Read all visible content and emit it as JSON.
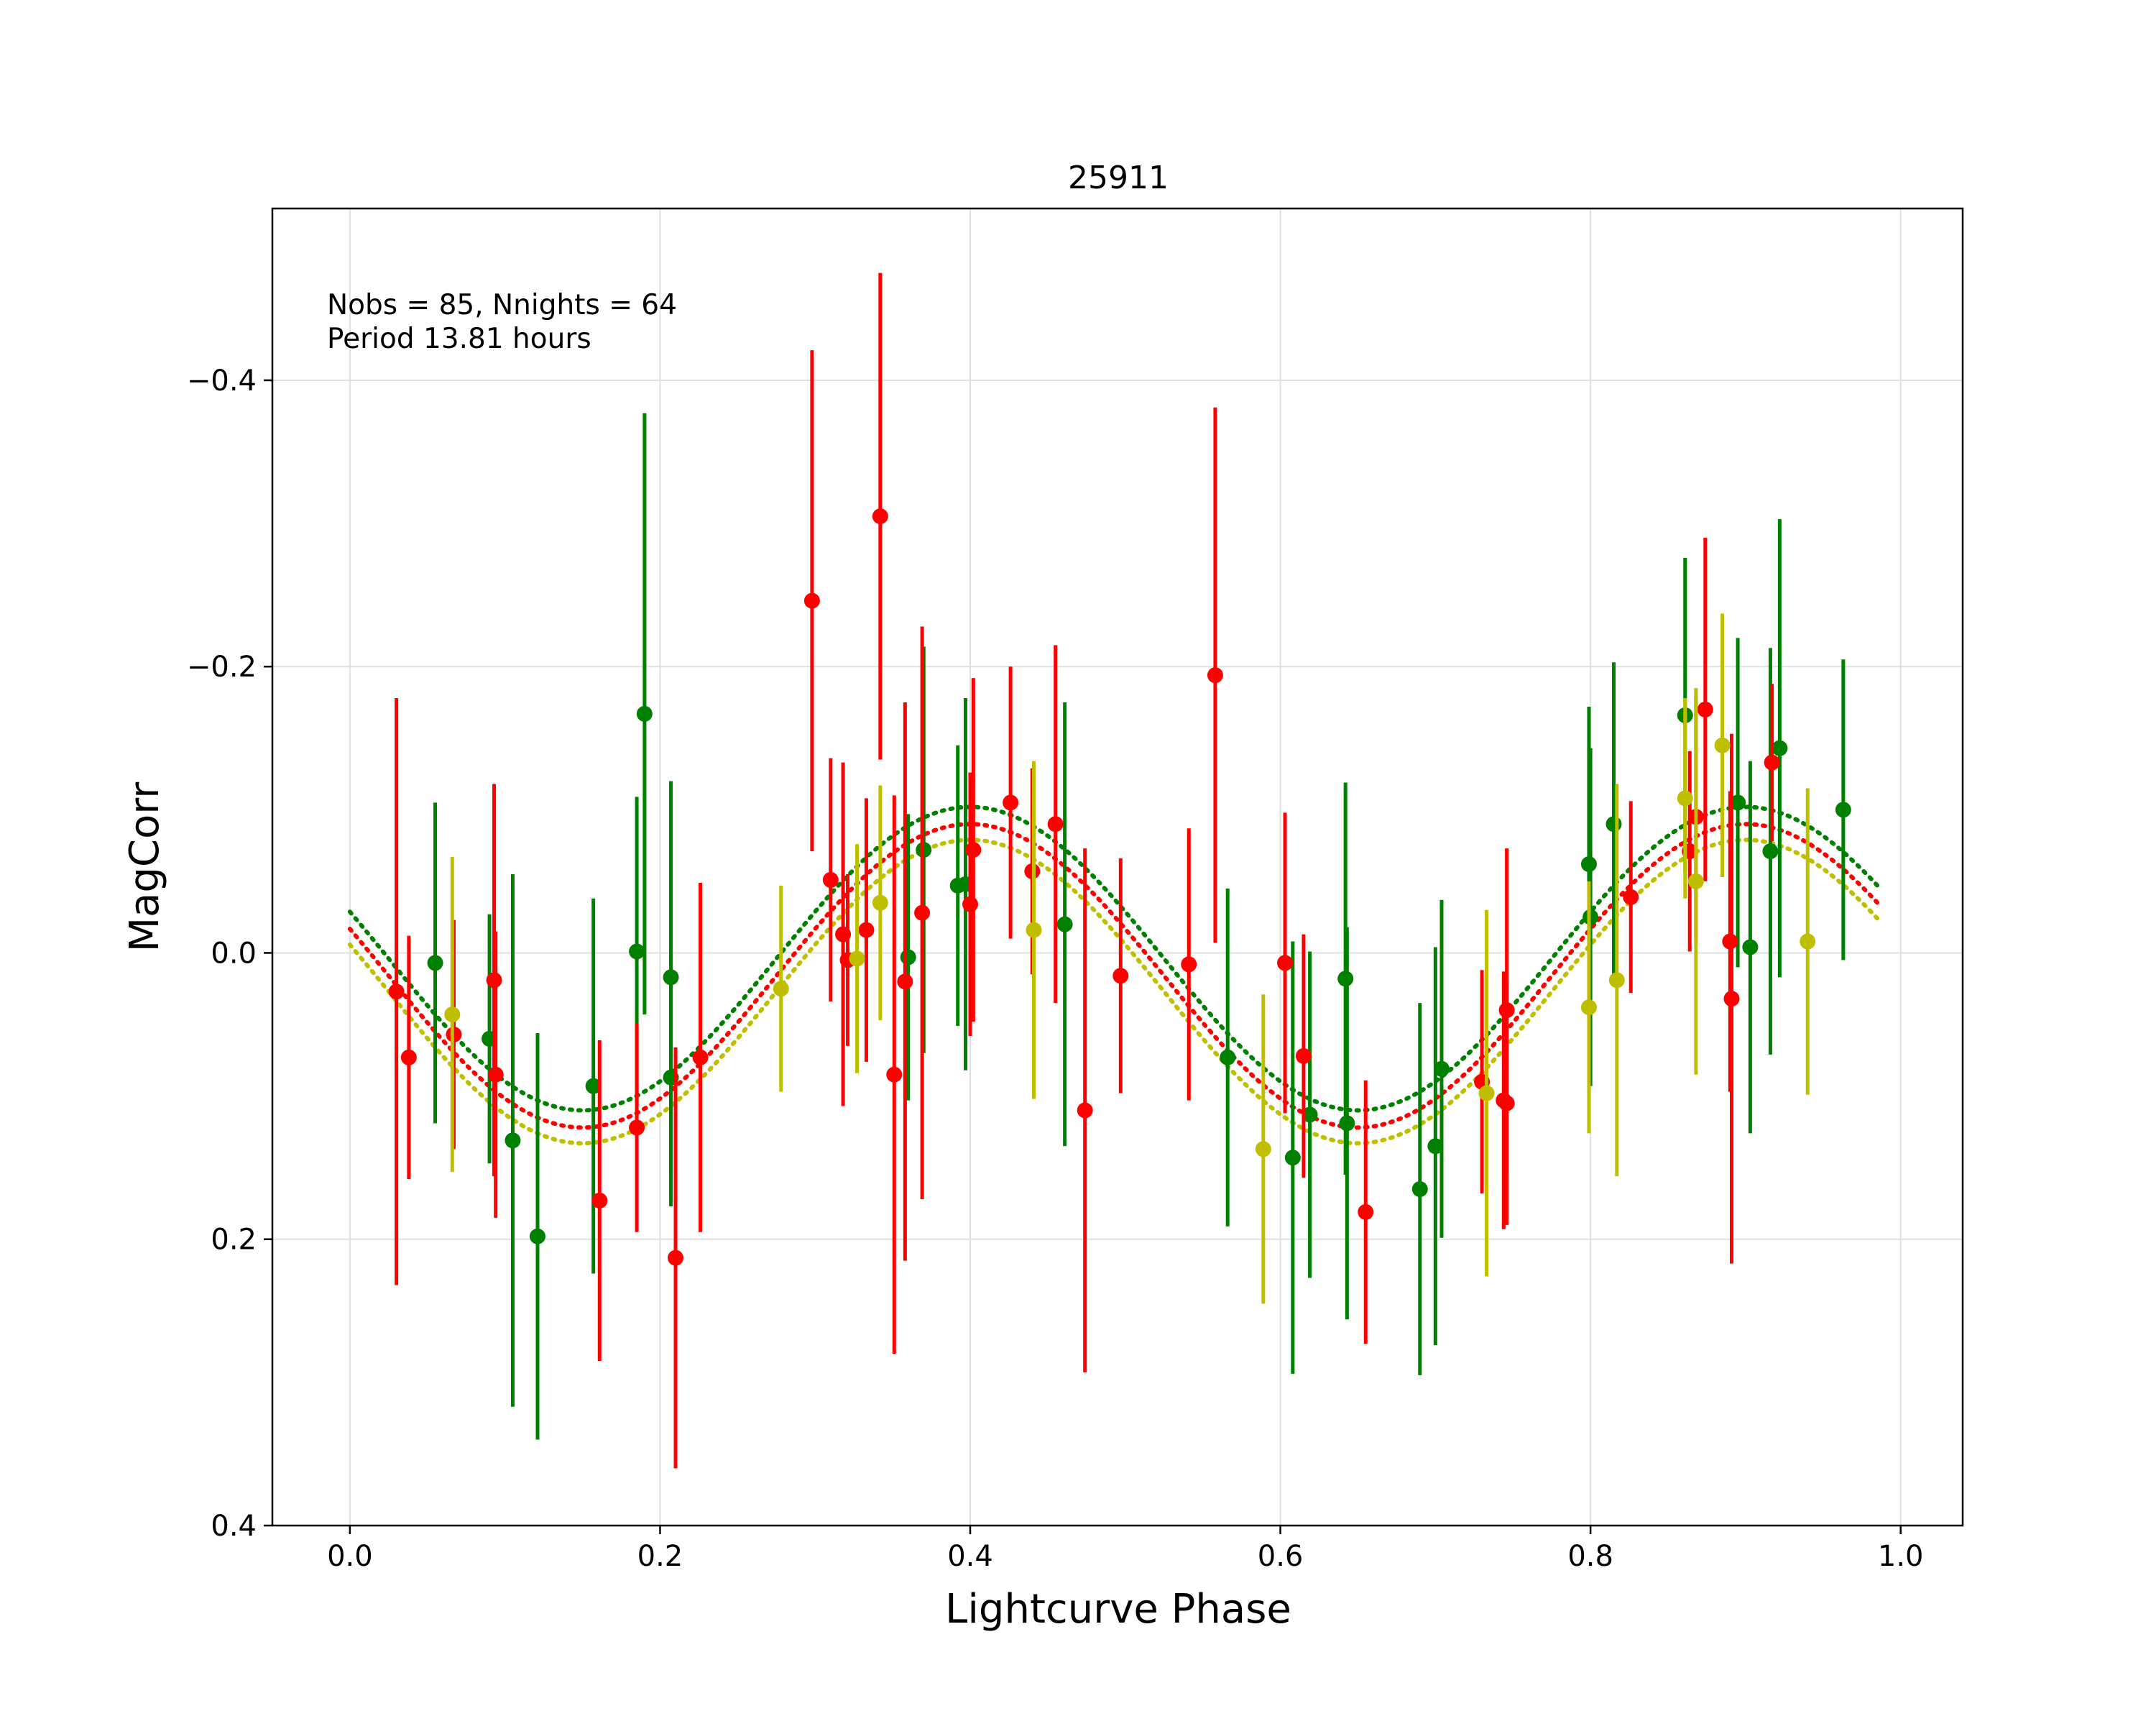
{
  "chart_data": {
    "type": "scatter",
    "title": "25911",
    "xlabel": "Lightcurve Phase",
    "ylabel": "MagCorr",
    "xlim": [
      -0.05,
      1.04
    ],
    "ylim": [
      0.4,
      -0.52
    ],
    "y_inverted": true,
    "grid": true,
    "xticks": [
      0.0,
      0.2,
      0.4,
      0.6,
      0.8,
      1.0
    ],
    "xtick_labels": [
      "0.0",
      "0.2",
      "0.4",
      "0.6",
      "0.8",
      "1.0"
    ],
    "yticks": [
      0.4,
      0.2,
      0.0,
      -0.2,
      -0.4
    ],
    "ytick_labels": [
      "0.4",
      "0.2",
      "0.0",
      "−0.2",
      "−0.4"
    ],
    "annotations": [
      "Nobs = 85, Nnights = 64",
      "Period 13.81 hours"
    ],
    "colors": {
      "green": "#008000",
      "red": "#ff0000",
      "yellow": "#bfbf00",
      "grid": "#e0e0e0"
    },
    "fit_curves": [
      {
        "color": "green",
        "offset": 0.004,
        "amplitude": 0.106,
        "phase_min": 0.15,
        "x_range": [
          0.0,
          0.985
        ]
      },
      {
        "color": "red",
        "offset": 0.016,
        "amplitude": 0.106,
        "phase_min": 0.15,
        "x_range": [
          0.0,
          0.985
        ]
      },
      {
        "color": "yellow",
        "offset": 0.027,
        "amplitude": 0.106,
        "phase_min": 0.15,
        "x_range": [
          0.0,
          0.985
        ]
      }
    ],
    "series": [
      {
        "color": "green",
        "points": [
          {
            "x": 0.055,
            "y": 0.007,
            "err": 0.112
          },
          {
            "x": 0.09,
            "y": 0.06,
            "err": 0.087
          },
          {
            "x": 0.105,
            "y": 0.131,
            "err": 0.186
          },
          {
            "x": 0.121,
            "y": 0.198,
            "err": 0.142
          },
          {
            "x": 0.157,
            "y": 0.093,
            "err": 0.131
          },
          {
            "x": 0.185,
            "y": -0.001,
            "err": 0.108
          },
          {
            "x": 0.19,
            "y": -0.167,
            "err": 0.21
          },
          {
            "x": 0.207,
            "y": 0.017,
            "err": 0.137
          },
          {
            "x": 0.207,
            "y": 0.087,
            "err": 0.09
          },
          {
            "x": 0.36,
            "y": 0.003,
            "err": 0.1
          },
          {
            "x": 0.37,
            "y": -0.072,
            "err": 0.142
          },
          {
            "x": 0.392,
            "y": -0.047,
            "err": 0.098
          },
          {
            "x": 0.397,
            "y": -0.048,
            "err": 0.13
          },
          {
            "x": 0.461,
            "y": -0.02,
            "err": 0.155
          },
          {
            "x": 0.566,
            "y": 0.073,
            "err": 0.118
          },
          {
            "x": 0.608,
            "y": 0.143,
            "err": 0.151
          },
          {
            "x": 0.619,
            "y": 0.113,
            "err": 0.114
          },
          {
            "x": 0.642,
            "y": 0.018,
            "err": 0.137
          },
          {
            "x": 0.643,
            "y": 0.119,
            "err": 0.137
          },
          {
            "x": 0.69,
            "y": 0.165,
            "err": 0.13
          },
          {
            "x": 0.7,
            "y": 0.135,
            "err": 0.139
          },
          {
            "x": 0.704,
            "y": 0.081,
            "err": 0.118
          },
          {
            "x": 0.799,
            "y": -0.062,
            "err": 0.11
          },
          {
            "x": 0.8,
            "y": -0.025,
            "err": 0.118
          },
          {
            "x": 0.815,
            "y": -0.09,
            "err": 0.113
          },
          {
            "x": 0.861,
            "y": -0.166,
            "err": 0.11
          },
          {
            "x": 0.895,
            "y": -0.105,
            "err": 0.115
          },
          {
            "x": 0.903,
            "y": -0.004,
            "err": 0.13
          },
          {
            "x": 0.916,
            "y": -0.071,
            "err": 0.142
          },
          {
            "x": 0.922,
            "y": -0.143,
            "err": 0.16
          },
          {
            "x": 0.963,
            "y": -0.1,
            "err": 0.105
          }
        ]
      },
      {
        "color": "red",
        "points": [
          {
            "x": 0.03,
            "y": 0.027,
            "err": 0.205
          },
          {
            "x": 0.038,
            "y": 0.073,
            "err": 0.085
          },
          {
            "x": 0.067,
            "y": 0.057,
            "err": 0.08
          },
          {
            "x": 0.093,
            "y": 0.019,
            "err": 0.137
          },
          {
            "x": 0.094,
            "y": 0.085,
            "err": 0.1
          },
          {
            "x": 0.161,
            "y": 0.173,
            "err": 0.112
          },
          {
            "x": 0.185,
            "y": 0.122,
            "err": 0.073
          },
          {
            "x": 0.21,
            "y": 0.213,
            "err": 0.147
          },
          {
            "x": 0.226,
            "y": 0.073,
            "err": 0.122
          },
          {
            "x": 0.298,
            "y": -0.246,
            "err": 0.175
          },
          {
            "x": 0.31,
            "y": -0.051,
            "err": 0.085
          },
          {
            "x": 0.318,
            "y": -0.013,
            "err": 0.12
          },
          {
            "x": 0.321,
            "y": 0.005,
            "err": 0.06
          },
          {
            "x": 0.333,
            "y": -0.016,
            "err": 0.092
          },
          {
            "x": 0.342,
            "y": -0.305,
            "err": 0.17
          },
          {
            "x": 0.351,
            "y": 0.085,
            "err": 0.195
          },
          {
            "x": 0.358,
            "y": 0.02,
            "err": 0.195
          },
          {
            "x": 0.369,
            "y": -0.028,
            "err": 0.2
          },
          {
            "x": 0.4,
            "y": -0.034,
            "err": 0.092
          },
          {
            "x": 0.402,
            "y": -0.072,
            "err": 0.12
          },
          {
            "x": 0.426,
            "y": -0.105,
            "err": 0.095
          },
          {
            "x": 0.44,
            "y": -0.057,
            "err": 0.072
          },
          {
            "x": 0.455,
            "y": -0.09,
            "err": 0.125
          },
          {
            "x": 0.474,
            "y": 0.11,
            "err": 0.183
          },
          {
            "x": 0.497,
            "y": 0.016,
            "err": 0.082
          },
          {
            "x": 0.541,
            "y": 0.008,
            "err": 0.095
          },
          {
            "x": 0.558,
            "y": -0.194,
            "err": 0.187
          },
          {
            "x": 0.603,
            "y": 0.007,
            "err": 0.105
          },
          {
            "x": 0.615,
            "y": 0.072,
            "err": 0.085
          },
          {
            "x": 0.655,
            "y": 0.181,
            "err": 0.092
          },
          {
            "x": 0.73,
            "y": 0.09,
            "err": 0.078
          },
          {
            "x": 0.744,
            "y": 0.103,
            "err": 0.09
          },
          {
            "x": 0.746,
            "y": 0.04,
            "err": 0.113
          },
          {
            "x": 0.746,
            "y": 0.105,
            "err": 0.085
          },
          {
            "x": 0.826,
            "y": -0.039,
            "err": 0.067
          },
          {
            "x": 0.864,
            "y": -0.071,
            "err": 0.07
          },
          {
            "x": 0.868,
            "y": -0.095,
            "err": 0.085
          },
          {
            "x": 0.874,
            "y": -0.17,
            "err": 0.12
          },
          {
            "x": 0.89,
            "y": -0.008,
            "err": 0.105
          },
          {
            "x": 0.891,
            "y": 0.032,
            "err": 0.185
          },
          {
            "x": 0.917,
            "y": -0.133,
            "err": 0.055
          }
        ]
      },
      {
        "color": "yellow",
        "points": [
          {
            "x": 0.066,
            "y": 0.043,
            "err": 0.11
          },
          {
            "x": 0.278,
            "y": 0.025,
            "err": 0.072
          },
          {
            "x": 0.327,
            "y": 0.004,
            "err": 0.08
          },
          {
            "x": 0.342,
            "y": -0.035,
            "err": 0.082
          },
          {
            "x": 0.441,
            "y": -0.016,
            "err": 0.118
          },
          {
            "x": 0.589,
            "y": 0.137,
            "err": 0.108
          },
          {
            "x": 0.733,
            "y": 0.098,
            "err": 0.128
          },
          {
            "x": 0.799,
            "y": 0.038,
            "err": 0.088
          },
          {
            "x": 0.817,
            "y": 0.019,
            "err": 0.137
          },
          {
            "x": 0.861,
            "y": -0.108,
            "err": 0.07
          },
          {
            "x": 0.868,
            "y": -0.05,
            "err": 0.135
          },
          {
            "x": 0.885,
            "y": -0.145,
            "err": 0.092
          },
          {
            "x": 0.94,
            "y": -0.008,
            "err": 0.107
          }
        ]
      }
    ]
  }
}
